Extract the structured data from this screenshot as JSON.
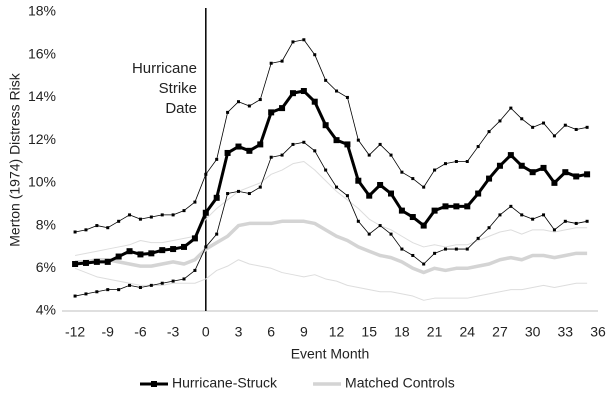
{
  "chart_data": {
    "type": "line",
    "y_label": "Merton (1974) Distress Risk",
    "x_label": "Event Month",
    "annotation": [
      "Hurricane",
      "Strike",
      "Date"
    ],
    "vline": 0,
    "x": [
      -12,
      -11,
      -10,
      -9,
      -8,
      -7,
      -6,
      -5,
      -4,
      -3,
      -2,
      -1,
      0,
      1,
      2,
      3,
      4,
      5,
      6,
      7,
      8,
      9,
      10,
      11,
      12,
      13,
      14,
      15,
      16,
      17,
      18,
      19,
      20,
      21,
      22,
      23,
      24,
      25,
      26,
      27,
      28,
      29,
      30,
      31,
      32,
      33,
      34,
      35
    ],
    "xlim": [
      -13.2,
      36
    ],
    "xticks": [
      -12,
      -9,
      -6,
      -3,
      0,
      3,
      6,
      9,
      12,
      15,
      18,
      21,
      24,
      27,
      30,
      33,
      36
    ],
    "ylim": [
      4,
      18
    ],
    "yticks": [
      {
        "value": 4,
        "label": "4%"
      },
      {
        "value": 6,
        "label": "6%"
      },
      {
        "value": 8,
        "label": "8%"
      },
      {
        "value": 10,
        "label": "10%"
      },
      {
        "value": 12,
        "label": "12%"
      },
      {
        "value": 14,
        "label": "14%"
      },
      {
        "value": 16,
        "label": "16%"
      },
      {
        "value": 18,
        "label": "18%"
      }
    ],
    "legend": "bottom",
    "series": [
      {
        "color": "#dddddd",
        "width": 1,
        "values": [
          6.6,
          6.7,
          6.8,
          6.9,
          7.0,
          7.1,
          7.3,
          7.2,
          7.2,
          7.3,
          7.4,
          7.5,
          8.3,
          8.8,
          9.2,
          9.6,
          9.8,
          10.0,
          10.4,
          10.6,
          10.9,
          11.0,
          10.6,
          10.1,
          9.6,
          9.2,
          8.8,
          8.3,
          8.0,
          7.8,
          7.5,
          7.2,
          7.0,
          7.1,
          7.0,
          7.1,
          7.1,
          7.3,
          7.5,
          7.7,
          7.8,
          7.6,
          7.8,
          7.8,
          7.7,
          7.8,
          7.9,
          7.9
        ]
      },
      {
        "color": "#dddddd",
        "width": 1,
        "values": [
          6.0,
          5.8,
          5.6,
          5.5,
          5.4,
          5.3,
          5.2,
          5.2,
          5.2,
          5.3,
          5.3,
          5.3,
          5.5,
          5.9,
          6.1,
          6.4,
          6.2,
          6.1,
          6.0,
          5.8,
          5.7,
          5.6,
          5.7,
          5.5,
          5.4,
          5.2,
          5.1,
          5.0,
          4.9,
          4.9,
          4.8,
          4.7,
          4.5,
          4.6,
          4.6,
          4.6,
          4.6,
          4.7,
          4.8,
          4.9,
          5.0,
          5.0,
          5.1,
          5.2,
          5.1,
          5.2,
          5.3,
          5.3
        ]
      },
      {
        "name": "Matched Controls",
        "color": "#d4d4d4",
        "width": 3.5,
        "values": [
          6.3,
          6.3,
          6.4,
          6.4,
          6.3,
          6.2,
          6.1,
          6.1,
          6.2,
          6.3,
          6.2,
          6.4,
          6.9,
          7.2,
          7.5,
          8.0,
          8.1,
          8.1,
          8.1,
          8.2,
          8.2,
          8.2,
          8.1,
          7.8,
          7.5,
          7.3,
          7.0,
          6.8,
          6.6,
          6.5,
          6.3,
          6.0,
          5.8,
          6.0,
          5.9,
          6.0,
          6.0,
          6.1,
          6.2,
          6.4,
          6.5,
          6.4,
          6.6,
          6.6,
          6.5,
          6.6,
          6.7,
          6.7
        ]
      },
      {
        "color": "#000000",
        "width": 0.8,
        "marker": "square",
        "marker_size": 3,
        "values": [
          7.7,
          7.8,
          8.0,
          7.9,
          8.2,
          8.5,
          8.3,
          8.4,
          8.5,
          8.5,
          8.7,
          9.1,
          10.4,
          11.1,
          13.3,
          13.8,
          13.6,
          13.9,
          15.6,
          15.7,
          16.6,
          16.7,
          16.0,
          14.8,
          14.3,
          14.0,
          12.0,
          11.3,
          11.8,
          11.3,
          10.5,
          10.2,
          9.8,
          10.6,
          10.9,
          11.0,
          11.0,
          11.7,
          12.4,
          12.9,
          13.5,
          13.0,
          12.6,
          12.8,
          12.2,
          12.7,
          12.5,
          12.6
        ]
      },
      {
        "color": "#000000",
        "width": 0.8,
        "marker": "square",
        "marker_size": 3,
        "values": [
          4.7,
          4.8,
          4.9,
          5.0,
          5.0,
          5.2,
          5.1,
          5.2,
          5.3,
          5.4,
          5.5,
          5.9,
          7.0,
          7.6,
          9.5,
          9.6,
          9.5,
          9.8,
          11.2,
          11.3,
          11.8,
          11.9,
          11.5,
          10.6,
          9.8,
          9.4,
          8.2,
          7.6,
          8.0,
          7.6,
          6.9,
          6.6,
          6.2,
          6.7,
          6.9,
          6.9,
          6.9,
          7.4,
          7.9,
          8.5,
          8.9,
          8.5,
          8.3,
          8.5,
          7.8,
          8.2,
          8.1,
          8.2
        ]
      },
      {
        "name": "Hurricane-Struck",
        "color": "#000000",
        "width": 3,
        "marker": "square",
        "marker_size": 6,
        "values": [
          6.2,
          6.25,
          6.3,
          6.3,
          6.55,
          6.8,
          6.65,
          6.7,
          6.85,
          6.9,
          7.0,
          7.4,
          8.6,
          9.3,
          11.4,
          11.7,
          11.5,
          11.8,
          13.3,
          13.5,
          14.2,
          14.3,
          13.8,
          12.7,
          12.0,
          11.8,
          10.1,
          9.4,
          9.9,
          9.5,
          8.7,
          8.4,
          8.0,
          8.7,
          8.9,
          8.9,
          8.9,
          9.5,
          10.2,
          10.8,
          11.3,
          10.8,
          10.5,
          10.7,
          10.0,
          10.5,
          10.3,
          10.4
        ]
      }
    ]
  }
}
